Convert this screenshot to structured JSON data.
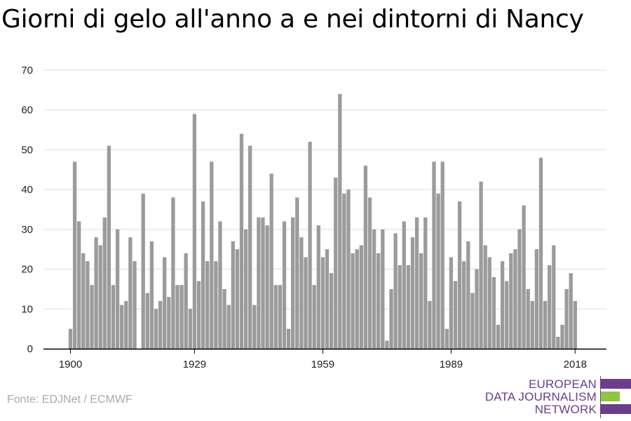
{
  "title": "Giorni di gelo all'anno a e nei dintorni di Nancy",
  "source": "Fonte: EDJNet / ECMWF",
  "logo": {
    "line1": "EUROPEAN",
    "line2": "DATA JOURNALISM",
    "line3": "NETWORK",
    "colors": [
      "#6b3d8c",
      "#8dc63f",
      "#6b3d8c"
    ]
  },
  "colors": {
    "bar": "#9b9b9b",
    "grid": "#dddddd",
    "axis": "#000000"
  },
  "chart_data": {
    "type": "bar",
    "title": "Giorni di gelo all'anno a e nei dintorni di Nancy",
    "xlabel": "",
    "ylabel": "",
    "ylim": [
      0,
      70
    ],
    "yticks": [
      0,
      10,
      20,
      30,
      40,
      50,
      60,
      70
    ],
    "xticks": [
      1900,
      1929,
      1959,
      1989,
      2018
    ],
    "grid": true,
    "series": [
      {
        "x": [
          1900,
          1901,
          1902,
          1903,
          1904,
          1905,
          1906,
          1907,
          1908,
          1909,
          1910,
          1911,
          1912,
          1913,
          1914,
          1915,
          1916,
          1917,
          1918,
          1919,
          1920,
          1921,
          1922,
          1923,
          1924,
          1925,
          1926,
          1927,
          1928,
          1929,
          1930,
          1931,
          1932,
          1933,
          1934,
          1935,
          1936,
          1937,
          1938,
          1939,
          1940,
          1941,
          1942,
          1943,
          1944,
          1945,
          1946,
          1947,
          1948,
          1949,
          1950,
          1951,
          1952,
          1953,
          1954,
          1955,
          1956,
          1957,
          1958,
          1959,
          1960,
          1961,
          1962,
          1963,
          1964,
          1965,
          1966,
          1967,
          1968,
          1969,
          1970,
          1971,
          1972,
          1973,
          1974,
          1975,
          1976,
          1977,
          1978,
          1979,
          1980,
          1981,
          1982,
          1983,
          1984,
          1985,
          1986,
          1987,
          1988,
          1989,
          1990,
          1991,
          1992,
          1993,
          1994,
          1995,
          1996,
          1997,
          1998,
          1999,
          2000,
          2001,
          2002,
          2003,
          2004,
          2005,
          2006,
          2007,
          2008,
          2009,
          2010,
          2011,
          2012,
          2013,
          2014,
          2015,
          2016,
          2017,
          2018
        ],
        "values": [
          5,
          47,
          32,
          24,
          22,
          16,
          28,
          26,
          33,
          51,
          16,
          30,
          11,
          12,
          28,
          22,
          0,
          39,
          14,
          27,
          10,
          12,
          23,
          13,
          38,
          16,
          16,
          24,
          10,
          59,
          17,
          37,
          22,
          47,
          22,
          32,
          15,
          11,
          27,
          25,
          54,
          30,
          51,
          11,
          33,
          33,
          31,
          44,
          16,
          16,
          32,
          5,
          33,
          38,
          28,
          23,
          52,
          16,
          31,
          23,
          25,
          19,
          43,
          64,
          39,
          40,
          24,
          25,
          26,
          46,
          38,
          30,
          24,
          30,
          2,
          15,
          29,
          21,
          32,
          21,
          28,
          33,
          24,
          33,
          12,
          47,
          39,
          47,
          5,
          23,
          17,
          37,
          22,
          27,
          14,
          20,
          42,
          26,
          23,
          18,
          6,
          22,
          17,
          24,
          25,
          30,
          36,
          15,
          12,
          25,
          48,
          12,
          21,
          26,
          3,
          6,
          15,
          19,
          12
        ]
      }
    ]
  }
}
